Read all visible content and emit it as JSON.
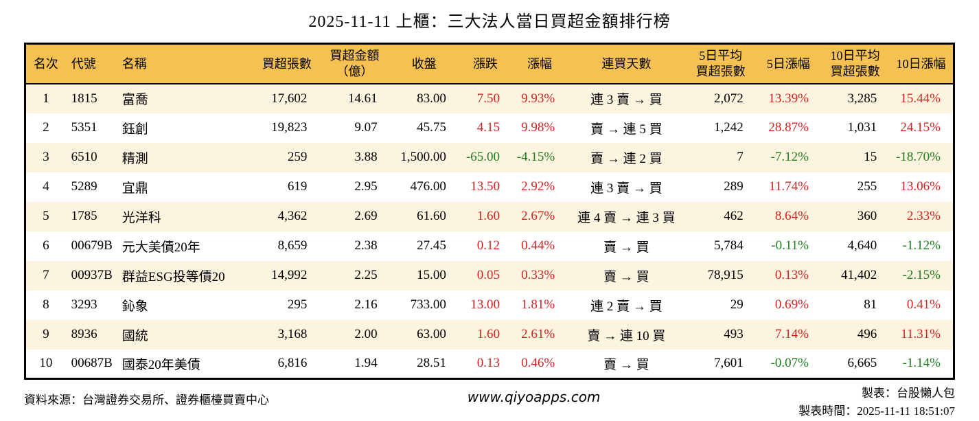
{
  "title": "2025-11-11 上櫃：三大法人當日買超金額排行榜",
  "colors": {
    "header_bg": "#f5c152",
    "stripe_bg": "#fdf4df",
    "positive_red": "#d42222",
    "negative_green": "#1e7d1e",
    "border": "#000000"
  },
  "chart_data": {
    "type": "table",
    "title": "2025-11-11 上櫃：三大法人當日買超金額排行榜",
    "columns": [
      "名次",
      "代號",
      "名稱",
      "買超張數",
      "買超金額\n（億）",
      "收盤",
      "漲跌",
      "漲幅",
      "連買天數",
      "5日平均\n買超張數",
      "5日漲幅",
      "10日平均\n買超張數",
      "10日漲幅"
    ],
    "rows": [
      [
        "1",
        "1815",
        "富喬",
        "17,602",
        "14.61",
        "83.00",
        "7.50",
        "9.93%",
        "連 3 賣 → 買",
        "2,072",
        "13.39%",
        "3,285",
        "15.44%"
      ],
      [
        "2",
        "5351",
        "鈺創",
        "19,823",
        "9.07",
        "45.75",
        "4.15",
        "9.98%",
        "賣 → 連 5 買",
        "1,242",
        "28.87%",
        "1,031",
        "24.15%"
      ],
      [
        "3",
        "6510",
        "精測",
        "259",
        "3.88",
        "1,500.00",
        "-65.00",
        "-4.15%",
        "賣 → 連 2 買",
        "7",
        "-7.12%",
        "15",
        "-18.70%"
      ],
      [
        "4",
        "5289",
        "宜鼎",
        "619",
        "2.95",
        "476.00",
        "13.50",
        "2.92%",
        "連 3 賣 → 買",
        "289",
        "11.74%",
        "255",
        "13.06%"
      ],
      [
        "5",
        "1785",
        "光洋科",
        "4,362",
        "2.69",
        "61.60",
        "1.60",
        "2.67%",
        "連 4 賣 → 連 3 買",
        "462",
        "8.64%",
        "360",
        "2.33%"
      ],
      [
        "6",
        "00679B",
        "元大美債20年",
        "8,659",
        "2.38",
        "27.45",
        "0.12",
        "0.44%",
        "賣 → 買",
        "5,784",
        "-0.11%",
        "4,640",
        "-1.12%"
      ],
      [
        "7",
        "00937B",
        "群益ESG投等債20",
        "14,992",
        "2.25",
        "15.00",
        "0.05",
        "0.33%",
        "賣 → 買",
        "78,915",
        "0.13%",
        "41,402",
        "-2.15%"
      ],
      [
        "8",
        "3293",
        "鈊象",
        "295",
        "2.16",
        "733.00",
        "13.00",
        "1.81%",
        "連 2 賣 → 買",
        "29",
        "0.69%",
        "81",
        "0.41%"
      ],
      [
        "9",
        "8936",
        "國統",
        "3,168",
        "2.00",
        "63.00",
        "1.60",
        "2.61%",
        "賣 → 連 10 買",
        "493",
        "7.14%",
        "496",
        "11.31%"
      ],
      [
        "10",
        "00687B",
        "國泰20年美債",
        "6,816",
        "1.94",
        "28.51",
        "0.13",
        "0.46%",
        "賣 → 買",
        "7,601",
        "-0.07%",
        "6,665",
        "-1.14%"
      ]
    ]
  },
  "footer": {
    "source": "資料來源：台灣證券交易所、證券櫃檯買賣中心",
    "website": "www.qiyoapps.com",
    "author": "製表：台股懶人包",
    "generated": "製表時間：2025-11-11 18:51:07"
  }
}
